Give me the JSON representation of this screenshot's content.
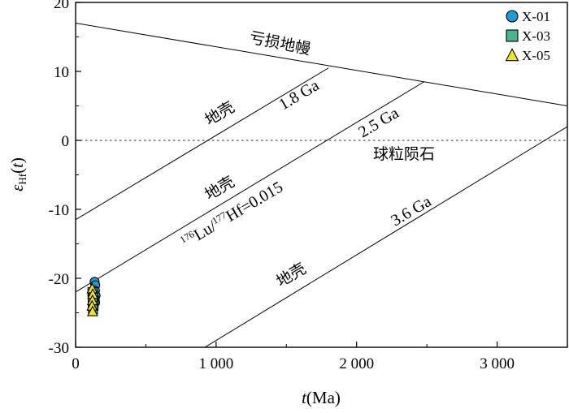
{
  "chart_data": {
    "type": "scatter",
    "xlabel": "t(Ma)",
    "ylabel": "εHf(t)",
    "xlim": [
      0,
      3500
    ],
    "ylim": [
      -30,
      20
    ],
    "x_ticks": [
      {
        "value": 0,
        "label": "0"
      },
      {
        "value": 1000,
        "label": "1 000"
      },
      {
        "value": 2000,
        "label": "2 000"
      },
      {
        "value": 3000,
        "label": "3 000"
      }
    ],
    "y_ticks": [
      {
        "value": 20,
        "label": "20"
      },
      {
        "value": 10,
        "label": "10"
      },
      {
        "value": 0,
        "label": "0"
      },
      {
        "value": -10,
        "label": "-10"
      },
      {
        "value": -20,
        "label": "-20"
      },
      {
        "value": -30,
        "label": "-30"
      }
    ],
    "legend_position": "top-right",
    "series": [
      {
        "name": "X-01",
        "marker": "circle",
        "color": "#1E9AD6",
        "points": [
          [
            135,
            -20.5
          ],
          [
            140,
            -21.0
          ],
          [
            138,
            -21.8
          ],
          [
            142,
            -22.5
          ],
          [
            136,
            -23.0
          ],
          [
            139,
            -23.5
          ]
        ]
      },
      {
        "name": "X-03",
        "marker": "square",
        "color": "#4DB38A",
        "points": [
          [
            120,
            -22.0
          ],
          [
            125,
            -22.8
          ],
          [
            122,
            -23.5
          ],
          [
            128,
            -24.0
          ],
          [
            124,
            -24.5
          ]
        ]
      },
      {
        "name": "X-05",
        "marker": "triangle",
        "color": "#F2E421",
        "points": [
          [
            118,
            -21.5
          ],
          [
            122,
            -22.3
          ],
          [
            120,
            -23.2
          ],
          [
            117,
            -24.0
          ],
          [
            121,
            -24.8
          ]
        ]
      }
    ],
    "reference_lines": [
      {
        "label": "亏损地幔",
        "points": [
          [
            0,
            17.0
          ],
          [
            3500,
            5.0
          ]
        ]
      },
      {
        "label": "球粒陨石",
        "points": [
          [
            0,
            0
          ],
          [
            3500,
            0
          ]
        ],
        "dashed": true
      },
      {
        "label": "1.8 Ga",
        "points": [
          [
            0,
            -11.5
          ],
          [
            1800,
            10.5
          ]
        ]
      },
      {
        "label": "2.5 Ga",
        "points": [
          [
            0,
            -22.0
          ],
          [
            2480,
            8.5
          ]
        ]
      },
      {
        "label": "3.6 Ga",
        "points": [
          [
            920,
            -30
          ],
          [
            3500,
            2.0
          ]
        ]
      }
    ],
    "annotations": {
      "depleted_mantle": "亏损地幔",
      "chondrite": "球粒陨石",
      "crust_label": "地壳",
      "age_1_8": "1.8 Ga",
      "age_2_5": "2.5 Ga",
      "age_3_6": "3.6 Ga",
      "lu_hf_sup1": "176",
      "lu_hf_lu": "Lu/",
      "lu_hf_sup2": "177",
      "lu_hf_rest": "Hf=0.015"
    }
  }
}
